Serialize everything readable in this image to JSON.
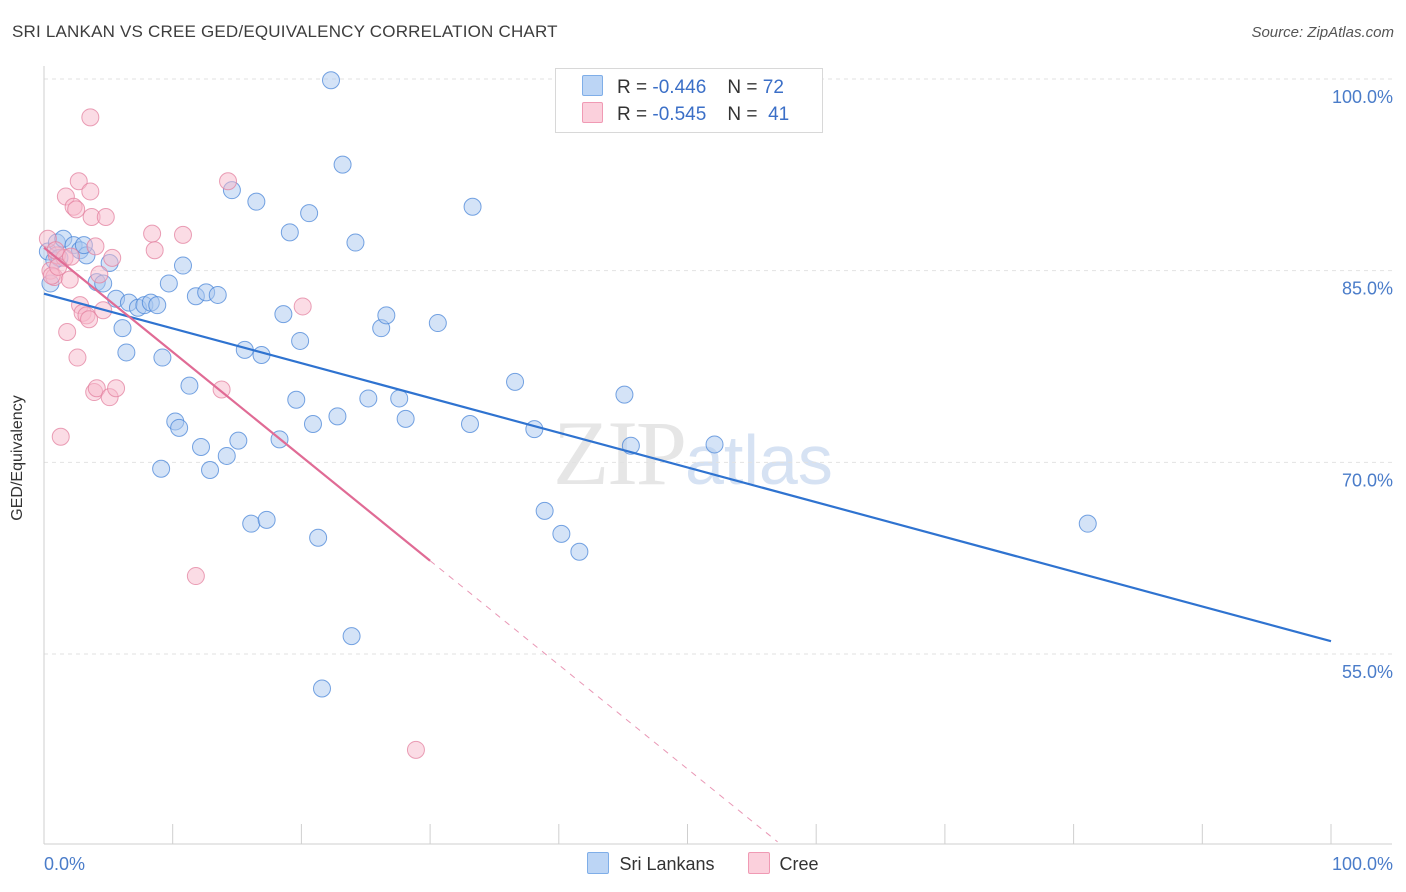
{
  "header": {
    "title": "SRI LANKAN VS CREE GED/EQUIVALENCY CORRELATION CHART",
    "source": "Source: ZipAtlas.com"
  },
  "watermark": {
    "zip": "ZIP",
    "atlas": "atlas"
  },
  "legend_top": {
    "rows": [
      {
        "r_label": "R =",
        "r_value": "-0.446",
        "n_label": "N =",
        "n_value": "72",
        "color": "#a9c8f0"
      },
      {
        "r_label": "R =",
        "r_value": "-0.545",
        "n_label": "N =",
        "n_value": "41",
        "color": "#f7bacb"
      }
    ]
  },
  "legend_bottom": {
    "items": [
      {
        "label": "Sri Lankans",
        "color": "#a9c8f0"
      },
      {
        "label": "Cree",
        "color": "#f7bacb"
      }
    ]
  },
  "chart_data": {
    "type": "scatter",
    "title": "SRI LANKAN VS CREE GED/EQUIVALENCY CORRELATION CHART",
    "xlabel": "",
    "ylabel": "GED/Equivalency",
    "xlim": [
      0,
      100
    ],
    "ylim": [
      40,
      102
    ],
    "x_tick_labels": [
      "0.0%",
      "100.0%"
    ],
    "y_ticks": [
      55,
      70,
      85,
      100
    ],
    "y_tick_labels": [
      "55.0%",
      "70.0%",
      "85.0%",
      "100.0%"
    ],
    "grid": true,
    "legend_position": "top-center",
    "series": [
      {
        "name": "Sri Lankans",
        "color": "#4a86d8",
        "fill": "#a9c8f0",
        "regression": {
          "x": [
            0,
            100
          ],
          "y": [
            83.2,
            56.0
          ],
          "style": "solid",
          "line_color": "#2f73d0"
        },
        "points": [
          [
            0.3,
            86.5
          ],
          [
            0.5,
            84.0
          ],
          [
            0.8,
            85.8
          ],
          [
            1.0,
            87.2
          ],
          [
            1.2,
            86.0
          ],
          [
            1.5,
            87.5
          ],
          [
            2.3,
            87.0
          ],
          [
            2.8,
            86.6
          ],
          [
            3.3,
            86.2
          ],
          [
            4.1,
            84.1
          ],
          [
            4.6,
            84.0
          ],
          [
            5.1,
            85.6
          ],
          [
            5.6,
            82.8
          ],
          [
            6.1,
            80.5
          ],
          [
            6.4,
            78.6
          ],
          [
            6.6,
            82.5
          ],
          [
            7.3,
            82.1
          ],
          [
            7.8,
            82.3
          ],
          [
            8.3,
            82.5
          ],
          [
            8.8,
            82.3
          ],
          [
            9.2,
            78.2
          ],
          [
            9.7,
            84.0
          ],
          [
            10.2,
            73.2
          ],
          [
            10.5,
            72.7
          ],
          [
            10.8,
            85.4
          ],
          [
            11.3,
            76.0
          ],
          [
            11.8,
            83.0
          ],
          [
            12.2,
            71.2
          ],
          [
            12.6,
            83.3
          ],
          [
            12.9,
            69.4
          ],
          [
            13.5,
            83.1
          ],
          [
            14.2,
            70.5
          ],
          [
            14.6,
            91.3
          ],
          [
            15.1,
            71.7
          ],
          [
            15.6,
            78.8
          ],
          [
            16.1,
            65.2
          ],
          [
            16.5,
            90.4
          ],
          [
            16.9,
            78.4
          ],
          [
            17.3,
            65.5
          ],
          [
            18.3,
            71.8
          ],
          [
            18.6,
            81.6
          ],
          [
            19.1,
            88.0
          ],
          [
            19.6,
            74.9
          ],
          [
            19.9,
            79.5
          ],
          [
            20.6,
            89.5
          ],
          [
            20.9,
            73.0
          ],
          [
            21.3,
            64.1
          ],
          [
            21.6,
            52.3
          ],
          [
            22.3,
            99.9
          ],
          [
            22.8,
            73.6
          ],
          [
            23.2,
            93.3
          ],
          [
            23.9,
            56.4
          ],
          [
            24.2,
            87.2
          ],
          [
            25.2,
            75.0
          ],
          [
            26.2,
            80.5
          ],
          [
            26.6,
            81.5
          ],
          [
            27.6,
            75.0
          ],
          [
            28.1,
            73.4
          ],
          [
            30.6,
            80.9
          ],
          [
            33.1,
            73.0
          ],
          [
            33.3,
            90.0
          ],
          [
            36.6,
            76.3
          ],
          [
            38.1,
            72.6
          ],
          [
            38.9,
            66.2
          ],
          [
            40.2,
            64.4
          ],
          [
            41.6,
            63.0
          ],
          [
            45.1,
            75.3
          ],
          [
            45.6,
            71.3
          ],
          [
            52.1,
            71.4
          ],
          [
            81.1,
            65.2
          ],
          [
            9.1,
            69.5
          ],
          [
            3.1,
            87.0
          ]
        ]
      },
      {
        "name": "Cree",
        "color": "#e3809f",
        "fill": "#f7bacb",
        "regression": {
          "x": [
            0,
            30
          ],
          "y": [
            86.8,
            62.3
          ],
          "style": "solid",
          "dashed_extension": {
            "x": [
              30,
              57
            ],
            "y": [
              62.3,
              40.3
            ]
          },
          "line_color": "#e06b95"
        },
        "points": [
          [
            0.3,
            87.5
          ],
          [
            0.5,
            85.0
          ],
          [
            0.8,
            84.5
          ],
          [
            1.0,
            86.2
          ],
          [
            1.3,
            72.0
          ],
          [
            1.6,
            86.0
          ],
          [
            1.7,
            90.8
          ],
          [
            1.8,
            80.2
          ],
          [
            2.0,
            84.3
          ],
          [
            2.3,
            90.0
          ],
          [
            2.5,
            89.8
          ],
          [
            2.6,
            78.2
          ],
          [
            2.7,
            92.0
          ],
          [
            2.8,
            82.3
          ],
          [
            3.0,
            81.7
          ],
          [
            3.3,
            81.5
          ],
          [
            3.6,
            91.2
          ],
          [
            3.7,
            89.2
          ],
          [
            3.5,
            81.2
          ],
          [
            3.9,
            75.5
          ],
          [
            4.0,
            86.9
          ],
          [
            4.1,
            75.8
          ],
          [
            4.6,
            81.9
          ],
          [
            4.8,
            89.2
          ],
          [
            5.1,
            75.1
          ],
          [
            5.3,
            86.0
          ],
          [
            5.6,
            75.8
          ],
          [
            3.6,
            97.0
          ],
          [
            14.3,
            92.0
          ],
          [
            8.4,
            87.9
          ],
          [
            8.6,
            86.6
          ],
          [
            10.8,
            87.8
          ],
          [
            11.8,
            61.1
          ],
          [
            13.8,
            75.7
          ],
          [
            20.1,
            82.2
          ],
          [
            28.9,
            47.5
          ],
          [
            0.6,
            84.6
          ],
          [
            0.9,
            86.6
          ],
          [
            1.1,
            85.3
          ],
          [
            2.1,
            86.1
          ],
          [
            4.3,
            84.7
          ]
        ]
      }
    ]
  }
}
